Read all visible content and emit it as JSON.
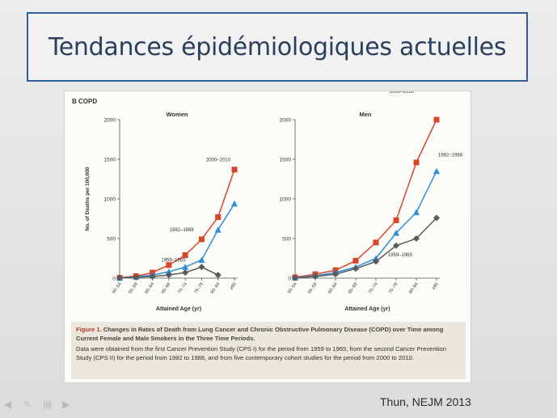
{
  "slide": {
    "title": "Tendances épidémiologiques actuelles",
    "citation": "Thun, NEJM 2013",
    "border_color": "#2e5f98"
  },
  "figure": {
    "panel_label": "B",
    "panel_title": "COPD",
    "caption_fig": "Figure 1.",
    "caption_title": "Changes in Rates of Death from Lung Cancer and Chronic Obstructive Pulmonary Disease (COPD) over Time among Current Female and Male Smokers in the Three Time Periods.",
    "caption_body": "Data were obtained from the first Cancer Prevention Study (CPS I) for the period from 1959 to 1965, from the second Cancer Prevention Study (CPS II) for the period from 1982 to 1988, and from five contemporary cohort studies for the period from 2000 to 2010."
  },
  "chart_data": [
    {
      "type": "line",
      "title": "Women",
      "xlabel": "Attained Age (yr)",
      "ylabel": "No. of Deaths per 100,000",
      "ylim": [
        0,
        2000
      ],
      "yticks": [
        "0",
        "500",
        "1000",
        "1500",
        "2000"
      ],
      "categories": [
        "50–54",
        "55–59",
        "60–64",
        "65–69",
        "70–74",
        "75–79",
        "80–84",
        "≥85"
      ],
      "series": [
        {
          "name": "2000–2010",
          "color": "#d9452b",
          "marker": "square",
          "values": [
            5,
            25,
            70,
            165,
            290,
            490,
            770,
            1370
          ]
        },
        {
          "name": "1982–1988",
          "color": "#2e8fd8",
          "marker": "triangle",
          "values": [
            3,
            15,
            40,
            80,
            140,
            230,
            610,
            940
          ]
        },
        {
          "name": "1959–1965",
          "color": "#5a5a5a",
          "marker": "diamond",
          "values": [
            2,
            10,
            20,
            40,
            70,
            140,
            40,
            null
          ]
        }
      ]
    },
    {
      "type": "line",
      "title": "Men",
      "xlabel": "Attained Age (yr)",
      "ylabel": "",
      "ylim": [
        0,
        2000
      ],
      "yticks": [
        "0",
        "500",
        "1000",
        "1500",
        "2000"
      ],
      "categories": [
        "50–54",
        "55–59",
        "60–64",
        "65–69",
        "70–74",
        "75–79",
        "80–84",
        "≥85"
      ],
      "series": [
        {
          "name": "2000–2010",
          "color": "#d9452b",
          "marker": "square",
          "values": [
            10,
            50,
            100,
            220,
            450,
            730,
            1460,
            2000
          ]
        },
        {
          "name": "1982–1988",
          "color": "#2e8fd8",
          "marker": "triangle",
          "values": [
            5,
            30,
            70,
            140,
            250,
            570,
            830,
            1350
          ]
        },
        {
          "name": "1959–1965",
          "color": "#5a5a5a",
          "marker": "diamond",
          "values": [
            3,
            20,
            50,
            120,
            210,
            410,
            500,
            760
          ]
        }
      ]
    }
  ]
}
